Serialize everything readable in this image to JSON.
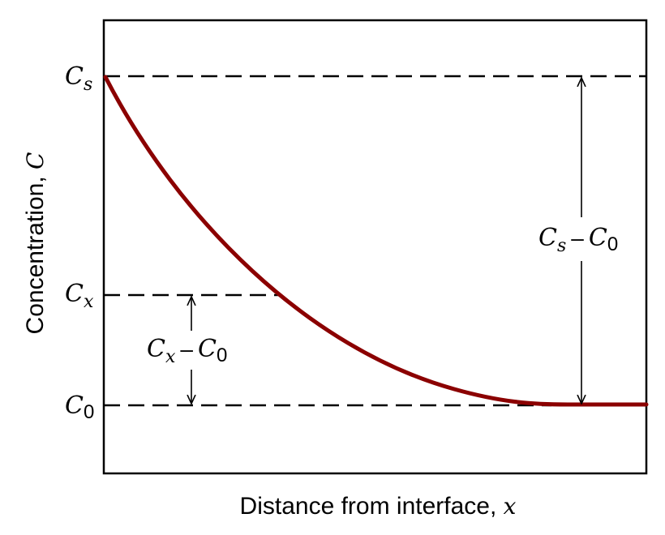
{
  "axes": {
    "x_title_text": "Distance from interface, ",
    "x_title_var": "x",
    "y_title_text": "Concentration, ",
    "y_title_var": "C"
  },
  "levels": {
    "cs": {
      "main": "C",
      "sub": "s"
    },
    "cx": {
      "main": "C",
      "sub": "x"
    },
    "c0": {
      "main": "C",
      "sub": "0"
    }
  },
  "differences": {
    "cx_minus_c0": {
      "a": "C",
      "a_sub": "x",
      "op": "–",
      "b": "C",
      "b_sub": "0"
    },
    "cs_minus_c0": {
      "a": "C",
      "a_sub": "s",
      "op": "–",
      "b": "C",
      "b_sub": "0"
    }
  },
  "colors": {
    "curve": "#8B0000",
    "frame": "#000000",
    "dashes": "#000000"
  }
}
